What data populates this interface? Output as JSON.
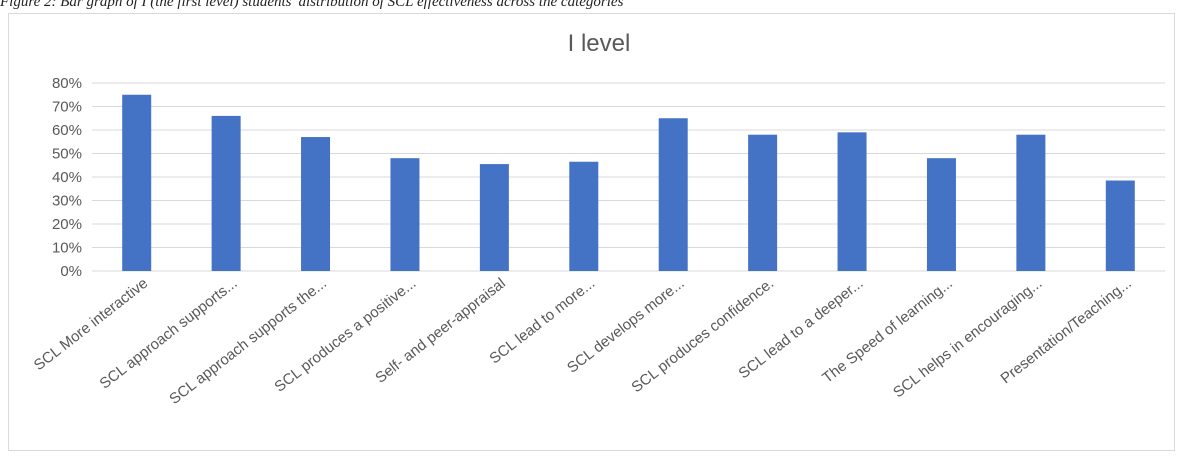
{
  "caption": "Figure 2: Bar graph of I (the first level) students' distribution of SCL effectiveness across the categories",
  "colors": {
    "bar": "#4472c4",
    "grid": "#d9d9d9",
    "text": "#595959",
    "frame": "#d9d9d9"
  },
  "chart_data": {
    "type": "bar",
    "title": "I level",
    "xlabel": "",
    "ylabel": "",
    "grid": true,
    "legend": "none",
    "ylim": [
      0,
      80
    ],
    "yticks": [
      "0%",
      "10%",
      "20%",
      "30%",
      "40%",
      "50%",
      "60%",
      "70%",
      "80%"
    ],
    "categories": [
      "SCL More interactive",
      "SCL approach supports...",
      "SCL approach supports the...",
      "SCL produces a positive...",
      "Self- and peer-appraisal",
      "SCL lead to more...",
      "SCL develops more...",
      "SCL produces confidence.",
      "SCL lead to a deeper...",
      "The Speed of learning...",
      "SCL helps in encouraging...",
      "Presentation/Teaching..."
    ],
    "values": [
      75,
      66,
      57,
      48,
      45.5,
      46.5,
      65,
      58,
      59,
      48,
      58,
      38.5
    ]
  }
}
